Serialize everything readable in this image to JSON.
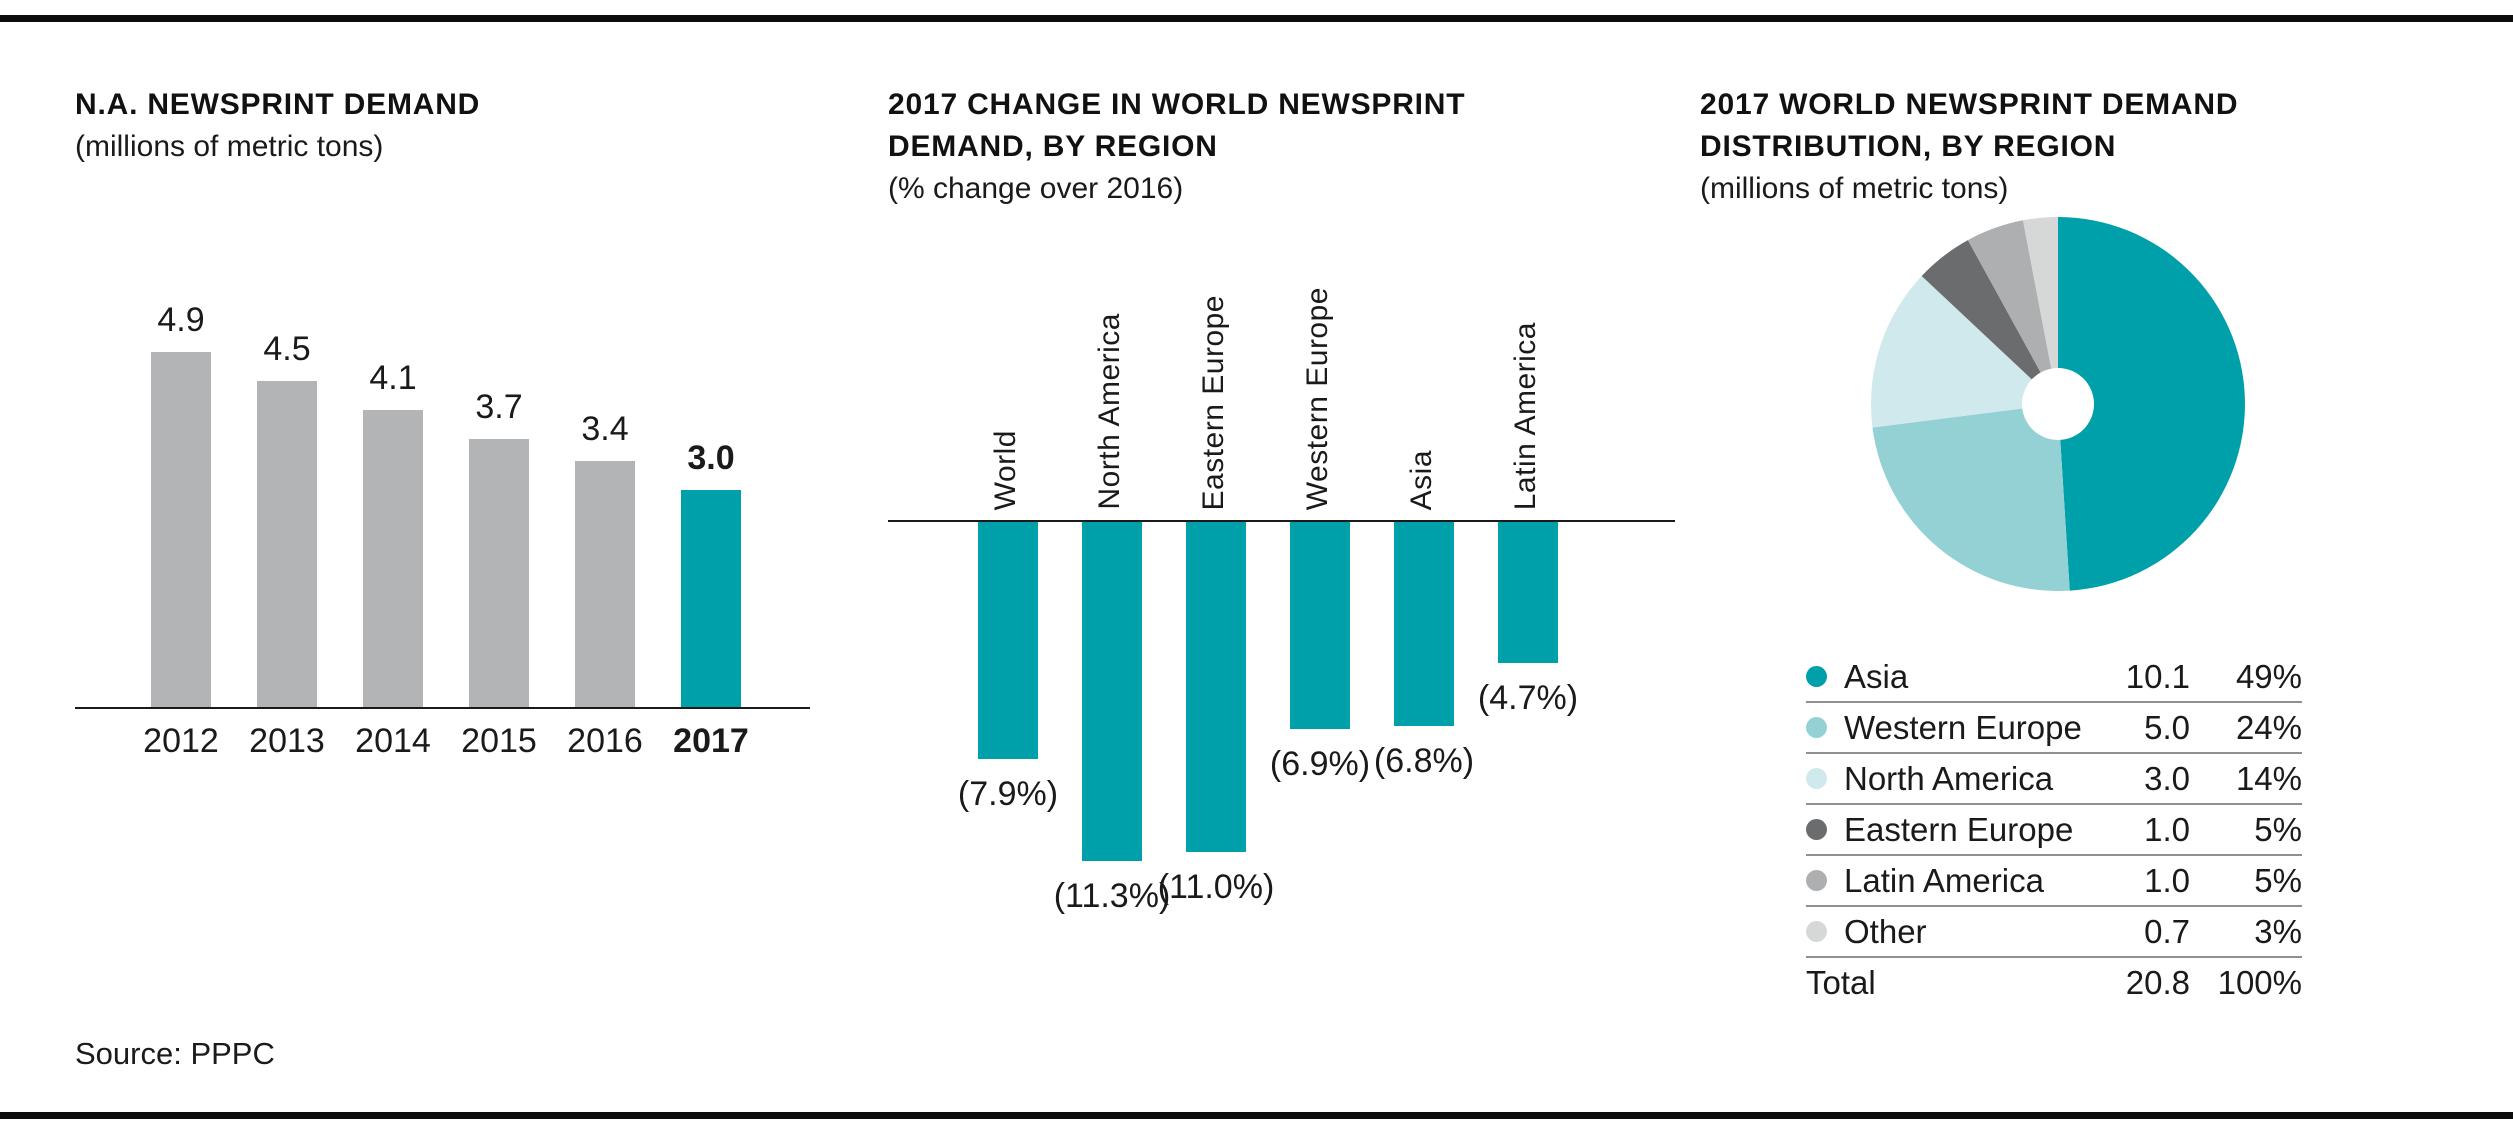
{
  "page": {
    "source_label": "Source: PPPC"
  },
  "colors": {
    "accent_teal": "#00a0ab",
    "bar_gray": "#b3b4b6",
    "rule_black": "#0d0d0d",
    "legend_divider": "#8f9092"
  },
  "chart_data": [
    {
      "type": "bar",
      "orientation": "up",
      "title_lines": [
        "N.A. NEWSPRINT DEMAND"
      ],
      "subtitle": "(millions of metric tons)",
      "categories": [
        "2012",
        "2013",
        "2014",
        "2015",
        "2016",
        "2017"
      ],
      "values": [
        4.9,
        4.5,
        4.1,
        3.7,
        3.4,
        3.0
      ],
      "value_labels": [
        "4.9",
        "4.5",
        "4.1",
        "3.7",
        "3.4",
        "3.0"
      ],
      "highlight_index": 5,
      "bar_color": "#b3b4b6",
      "highlight_color": "#00a0ab",
      "ylim": [
        0,
        5
      ],
      "grid": false,
      "legend_position": "none"
    },
    {
      "type": "bar",
      "orientation": "down",
      "title_lines": [
        "2017 CHANGE IN WORLD NEWSPRINT",
        "DEMAND, BY REGION"
      ],
      "subtitle": "(% change over 2016)",
      "categories": [
        "World",
        "North America",
        "Eastern Europe",
        "Western Europe",
        "Asia",
        "Latin America"
      ],
      "values": [
        -7.9,
        -11.3,
        -11.0,
        -6.9,
        -6.8,
        -4.7
      ],
      "value_labels": [
        "(7.9%)",
        "(11.3%)",
        "(11.0%)",
        "(6.9%)",
        "(6.8%)",
        "(4.7%)"
      ],
      "bar_color": "#00a0ab",
      "ylim": [
        0,
        -12
      ],
      "grid": false,
      "legend_position": "none"
    },
    {
      "type": "pie",
      "title_lines": [
        "2017 WORLD NEWSPRINT DEMAND",
        "DISTRIBUTION, BY REGION"
      ],
      "subtitle": "(millions of metric tons)",
      "donut_hole": true,
      "legend_position": "below",
      "slices": [
        {
          "label": "Asia",
          "value": 10.1,
          "value_label": "10.1",
          "percent_num": 49,
          "percent": "49%",
          "color": "#00a0ab"
        },
        {
          "label": "Western Europe",
          "value": 5.0,
          "value_label": "5.0",
          "percent_num": 24,
          "percent": "24%",
          "color": "#94d1d5"
        },
        {
          "label": "North America",
          "value": 3.0,
          "value_label": "3.0",
          "percent_num": 14,
          "percent": "14%",
          "color": "#d0e9ec"
        },
        {
          "label": "Eastern Europe",
          "value": 1.0,
          "value_label": "1.0",
          "percent_num": 5,
          "percent": "5%",
          "color": "#6b6c6e"
        },
        {
          "label": "Latin America",
          "value": 1.0,
          "value_label": "1.0",
          "percent_num": 5,
          "percent": "5%",
          "color": "#aeafb1"
        },
        {
          "label": "Other",
          "value": 0.7,
          "value_label": "0.7",
          "percent_num": 3,
          "percent": "3%",
          "color": "#d6d7d7"
        }
      ],
      "total": {
        "label": "Total",
        "value_label": "20.8",
        "percent": "100%"
      }
    }
  ]
}
